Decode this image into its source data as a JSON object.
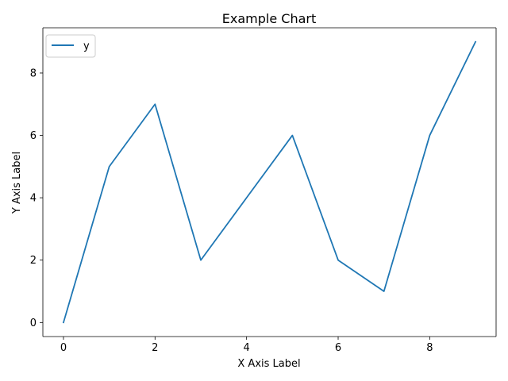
{
  "chart_data": {
    "type": "line",
    "title": "Example Chart",
    "xlabel": "X Axis Label",
    "ylabel": "Y Axis Label",
    "x": [
      0,
      1,
      2,
      3,
      4,
      5,
      6,
      7,
      8,
      9
    ],
    "series": [
      {
        "name": "y",
        "color": "#1f77b4",
        "values": [
          0,
          5,
          7,
          2,
          4,
          6,
          2,
          1,
          6,
          9
        ]
      }
    ],
    "xlim": [
      -0.45,
      9.45
    ],
    "ylim": [
      -0.45,
      9.45
    ],
    "xticks": [
      "0",
      "2",
      "4",
      "6",
      "8"
    ],
    "yticks": [
      "0",
      "2",
      "4",
      "6",
      "8"
    ],
    "grid": false,
    "legend_position": "upper-left"
  }
}
